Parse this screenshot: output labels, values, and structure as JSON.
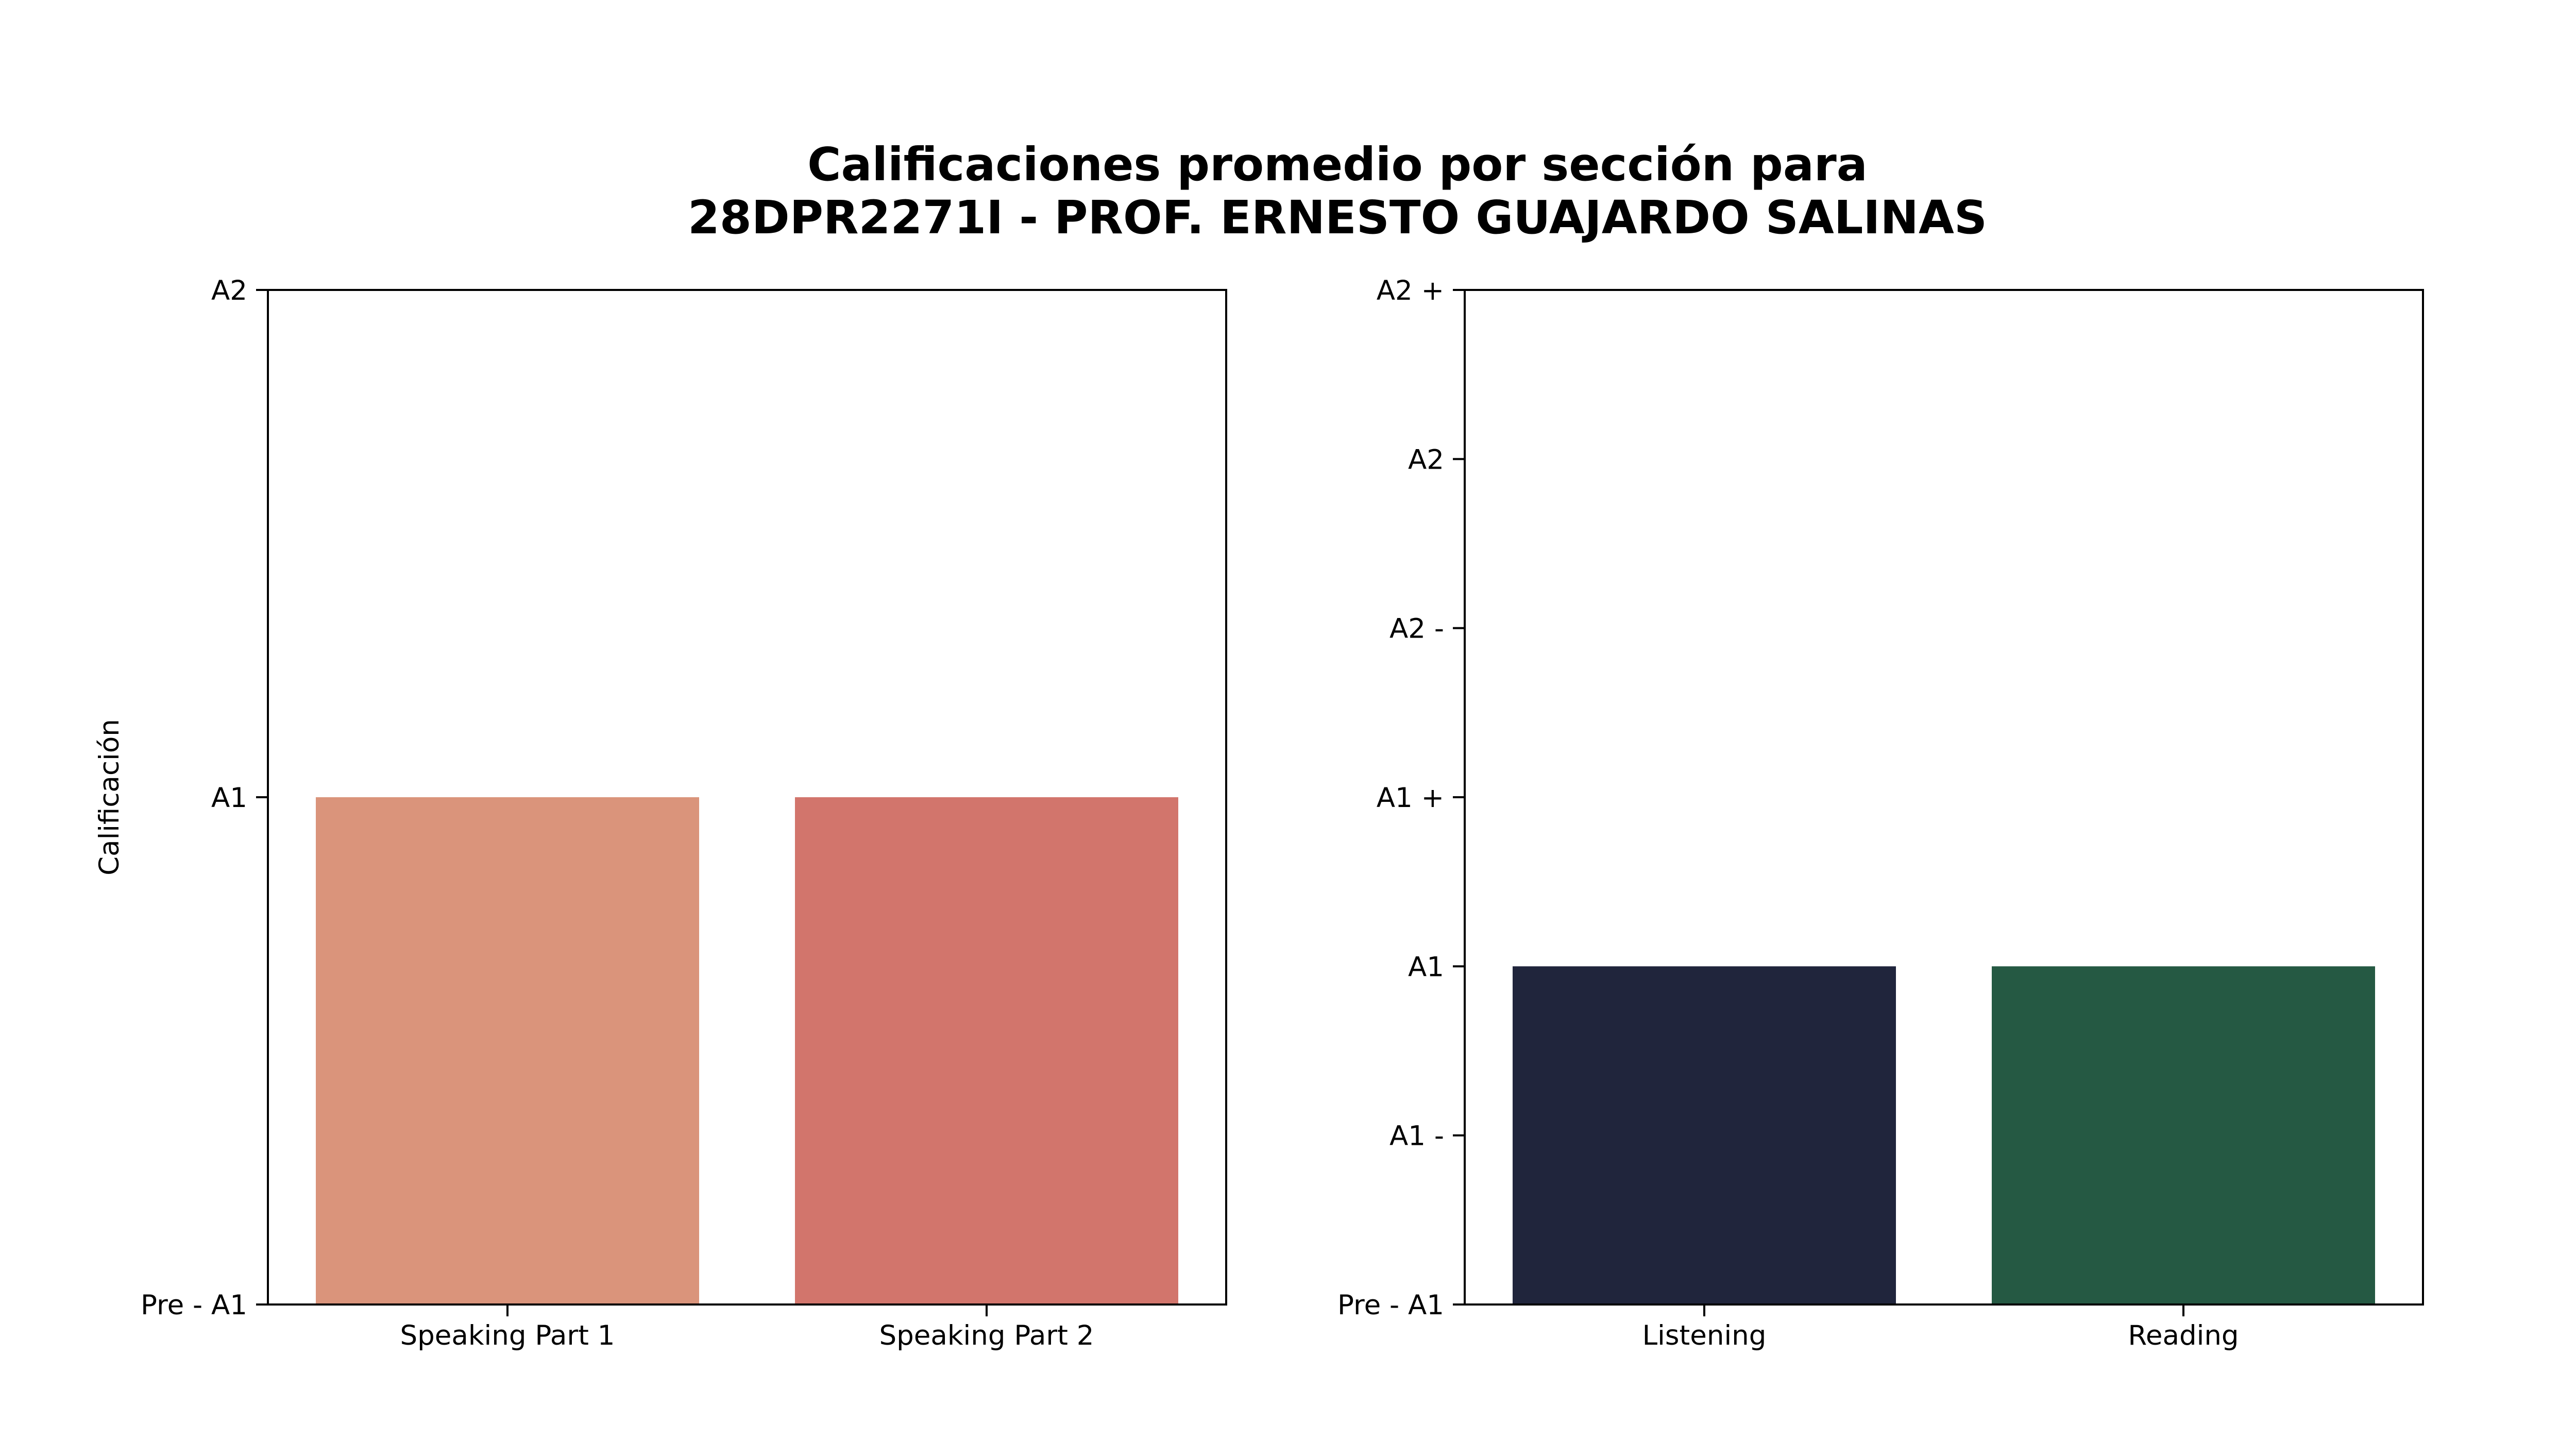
{
  "figure": {
    "title_line1": "Calificaciones promedio por sección para",
    "title_line2": "28DPR2271I - PROF. ERNESTO GUAJARDO SALINAS"
  },
  "chart_data": [
    {
      "type": "bar",
      "ylabel": "Calificación",
      "xlabel": "",
      "categories": [
        "Speaking Part 1",
        "Speaking Part 2"
      ],
      "values": [
        1,
        1
      ],
      "colors": [
        "#da947b",
        "#d2756c"
      ],
      "ylim": [
        0,
        2
      ],
      "yticks": [
        {
          "value": 0,
          "label": "Pre - A1"
        },
        {
          "value": 1,
          "label": "A1"
        },
        {
          "value": 2,
          "label": "A2"
        }
      ],
      "grid": false
    },
    {
      "type": "bar",
      "ylabel": "",
      "xlabel": "",
      "categories": [
        "Listening",
        "Reading"
      ],
      "values": [
        2,
        2
      ],
      "colors": [
        "#20253c",
        "#255943"
      ],
      "ylim": [
        0,
        6
      ],
      "yticks": [
        {
          "value": 0,
          "label": "Pre - A1"
        },
        {
          "value": 1,
          "label": "A1 -"
        },
        {
          "value": 2,
          "label": "A1"
        },
        {
          "value": 3,
          "label": "A1 +"
        },
        {
          "value": 4,
          "label": "A2 -"
        },
        {
          "value": 5,
          "label": "A2"
        },
        {
          "value": 6,
          "label": "A2 +"
        }
      ],
      "grid": false
    }
  ]
}
